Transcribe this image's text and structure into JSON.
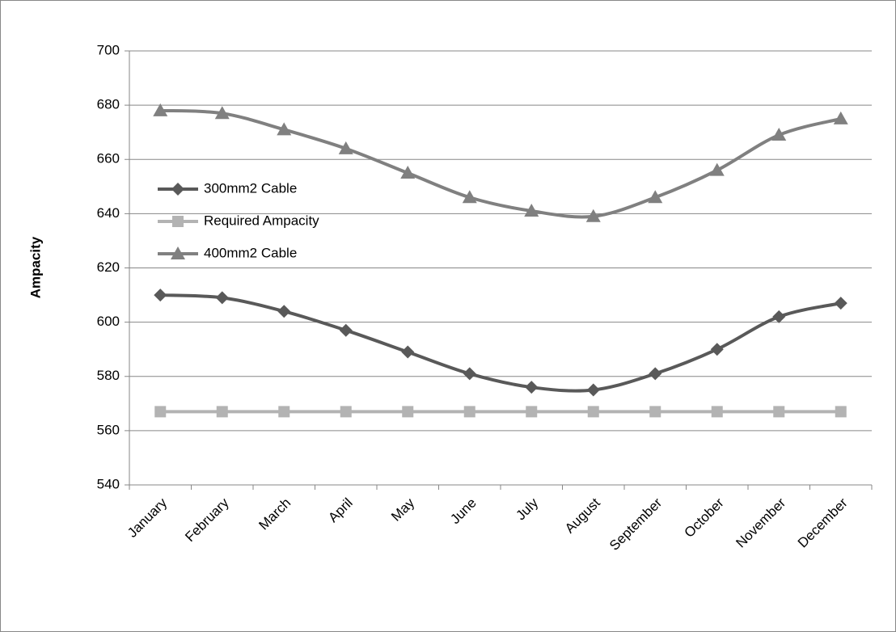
{
  "chart_data": {
    "type": "line",
    "y_label": "Ampacity",
    "categories": [
      "January",
      "February",
      "March",
      "April",
      "May",
      "June",
      "July",
      "August",
      "September",
      "October",
      "November",
      "December"
    ],
    "series": [
      {
        "name": "300mm2 Cable",
        "color": "#595959",
        "marker": "diamond",
        "values": [
          610,
          609,
          604,
          597,
          589,
          581,
          576,
          575,
          581,
          590,
          602,
          607
        ]
      },
      {
        "name": "Required Ampacity",
        "color": "#b3b3b3",
        "marker": "square",
        "values": [
          567,
          567,
          567,
          567,
          567,
          567,
          567,
          567,
          567,
          567,
          567,
          567
        ]
      },
      {
        "name": "400mm2 Cable",
        "color": "#808080",
        "marker": "triangle",
        "values": [
          678,
          677,
          671,
          664,
          655,
          646,
          641,
          639,
          646,
          656,
          669,
          675
        ]
      }
    ],
    "ylim": [
      540,
      700
    ],
    "yticks": [
      540,
      560,
      580,
      600,
      620,
      640,
      660,
      680,
      700
    ],
    "grid": true,
    "smooth": true,
    "legend": "upper left"
  }
}
